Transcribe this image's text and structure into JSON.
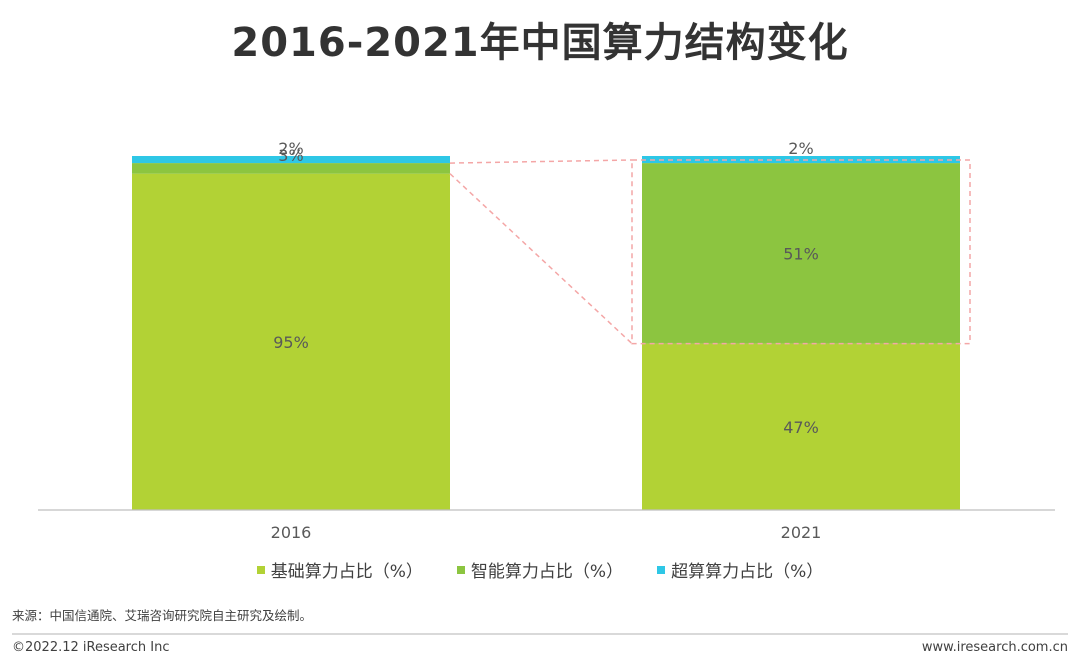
{
  "title": "2016-2021年中国算力结构变化",
  "chart_data": {
    "type": "bar",
    "stacked": true,
    "categories": [
      "2016",
      "2021"
    ],
    "series": [
      {
        "name": "基础算力占比（%）",
        "values": [
          95,
          47
        ],
        "labels": [
          "95%",
          "47%"
        ],
        "color": "#b2d235"
      },
      {
        "name": "智能算力占比（%）",
        "values": [
          3,
          51
        ],
        "labels": [
          "3%",
          "51%"
        ],
        "color": "#8cc540"
      },
      {
        "name": "超算算力占比（%）",
        "values": [
          2,
          2
        ],
        "labels": [
          "2%",
          "2%"
        ],
        "color": "#2ec7e6"
      }
    ],
    "ylim": [
      0,
      100
    ],
    "grid": false,
    "legend_position": "bottom",
    "highlight_color": "#f4a6a6"
  },
  "source": "来源：中国信通院、艾瑞咨询研究院自主研究及绘制。",
  "footer": {
    "copyright": "©2022.12 iResearch Inc",
    "website": "www.iresearch.com.cn"
  }
}
